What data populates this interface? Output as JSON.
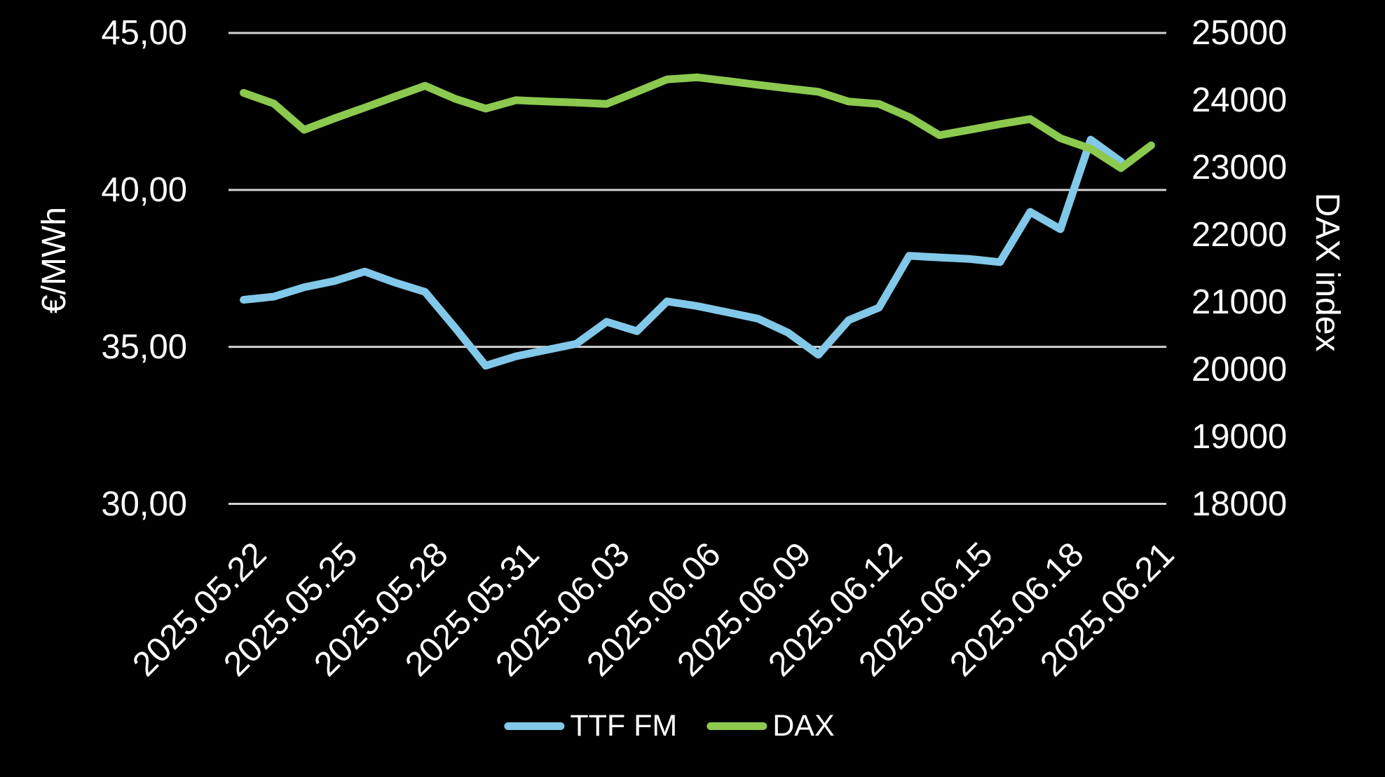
{
  "colors": {
    "background": "#000000",
    "text": "#FFFFFF",
    "gridline": "#D2D2D2",
    "ttf_line": "#82C8E8",
    "dax_line": "#8CC94F"
  },
  "chart_data": {
    "type": "line",
    "title": "",
    "x": [
      "2025.05.22",
      "2025.05.23",
      "2025.05.24",
      "2025.05.25",
      "2025.05.26",
      "2025.05.27",
      "2025.05.28",
      "2025.05.29",
      "2025.05.30",
      "2025.05.31",
      "2025.06.01",
      "2025.06.02",
      "2025.06.03",
      "2025.06.04",
      "2025.06.05",
      "2025.06.06",
      "2025.06.07",
      "2025.06.08",
      "2025.06.09",
      "2025.06.10",
      "2025.06.11",
      "2025.06.12",
      "2025.06.13",
      "2025.06.14",
      "2025.06.15",
      "2025.06.16",
      "2025.06.17",
      "2025.06.18",
      "2025.06.19",
      "2025.06.20",
      "2025.06.21"
    ],
    "x_tick_every": 3,
    "x_tick_labels": [
      "2025.05.22",
      "2025.05.25",
      "2025.05.28",
      "2025.05.31",
      "2025.06.03",
      "2025.06.06",
      "2025.06.09",
      "2025.06.12",
      "2025.06.15",
      "2025.06.18",
      "2025.06.21"
    ],
    "left_axis": {
      "label": "€/MWh",
      "min": 30,
      "max": 45,
      "tick_values": [
        45,
        40,
        35,
        30
      ],
      "tick_labels": [
        "45,00",
        "40,00",
        "35,00",
        "30,00"
      ]
    },
    "right_axis": {
      "label": "DAX index",
      "min": 18000,
      "max": 25000,
      "tick_values": [
        25000,
        24000,
        23000,
        22000,
        21000,
        20000,
        19000,
        18000
      ],
      "tick_labels": [
        "25000",
        "24000",
        "23000",
        "22000",
        "21000",
        "20000",
        "19000",
        "18000"
      ]
    },
    "grid": "horizontal",
    "legend_position": "bottom",
    "series": [
      {
        "name": "TTF FM",
        "axis": "left",
        "color": "#82C8E8",
        "values": [
          36.5,
          36.6,
          36.9,
          37.1,
          37.4,
          37.05,
          36.75,
          35.6,
          34.4,
          34.7,
          34.9,
          35.1,
          35.8,
          35.5,
          36.45,
          36.3,
          36.1,
          35.9,
          35.45,
          34.75,
          35.85,
          36.25,
          37.9,
          37.85,
          37.8,
          37.7,
          39.3,
          38.75,
          41.6,
          40.9,
          null
        ]
      },
      {
        "name": "DAX",
        "axis": "right",
        "color": "#8CC94F",
        "values": [
          24110,
          23950,
          23560,
          23730,
          23890,
          24055,
          24215,
          24020,
          23875,
          24000,
          23980,
          23965,
          23945,
          24125,
          24310,
          24340,
          24285,
          24230,
          24175,
          24125,
          23980,
          23945,
          23750,
          23480,
          23560,
          23645,
          23720,
          23435,
          23280,
          22990,
          23330
        ]
      }
    ]
  }
}
